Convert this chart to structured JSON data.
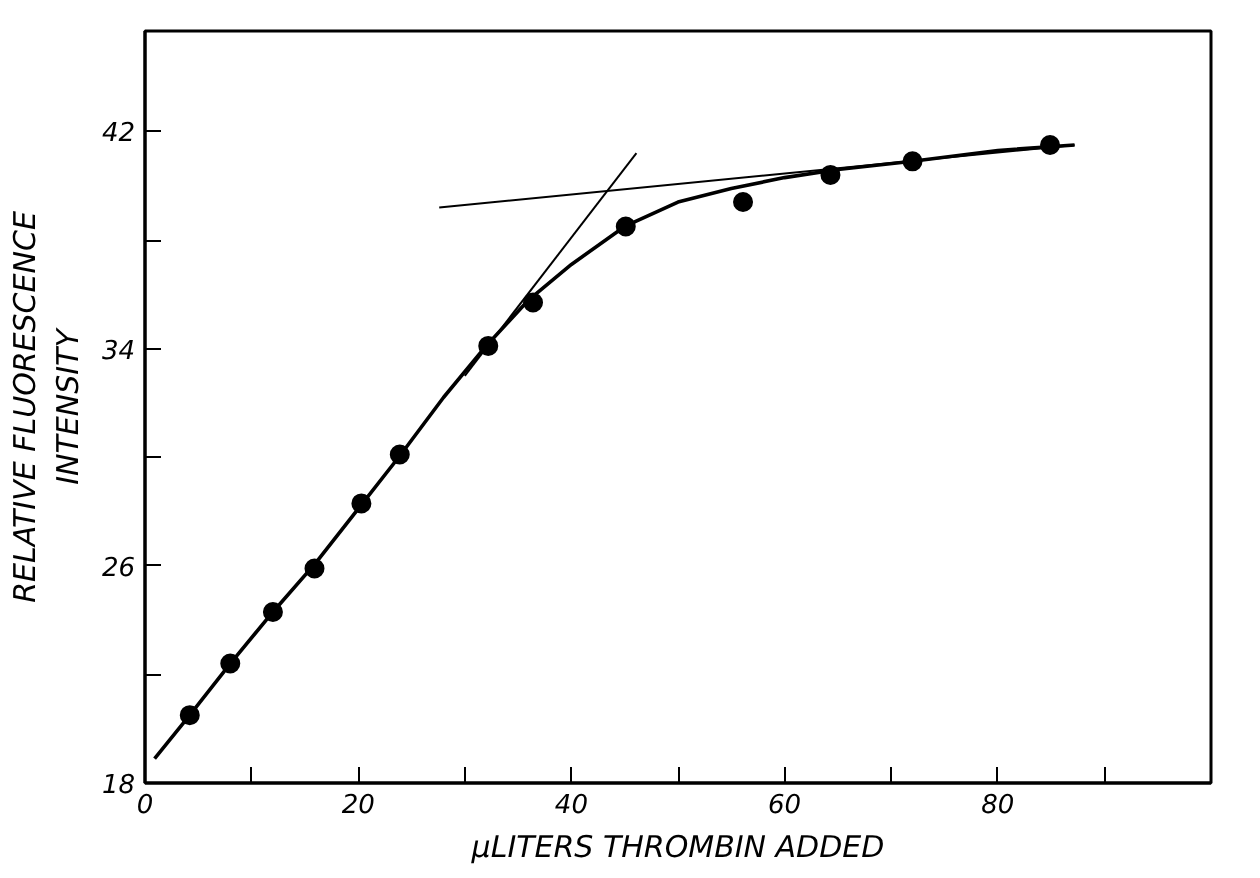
{
  "chart_data": {
    "type": "scatter",
    "xlabel": "μLITERS THROMBIN ADDED",
    "ylabel": "RELATIVE FLUORESCENCE\nINTENSITY",
    "xlim": [
      0,
      100
    ],
    "ylim": [
      18,
      45.7
    ],
    "xticks": [
      0,
      {
        "value": 10,
        "label": null
      },
      20,
      {
        "value": 30,
        "label": null
      },
      40,
      {
        "value": 50,
        "label": null
      },
      60,
      {
        "value": 70,
        "label": null
      },
      80,
      {
        "value": 90,
        "label": null
      }
    ],
    "yticks": [
      18,
      {
        "value": 22,
        "label": null
      },
      26,
      {
        "value": 30,
        "label": null
      },
      34,
      {
        "value": 38,
        "label": null
      },
      42
    ],
    "grid": false,
    "series": [
      {
        "marker": "circle",
        "color": "#000000",
        "x": [
          4.2,
          8.0,
          12.0,
          15.9,
          20.3,
          23.9,
          32.2,
          36.4,
          45.1,
          56.1,
          64.3,
          72.0,
          84.9
        ],
        "values": [
          20.5,
          22.4,
          24.3,
          25.9,
          28.3,
          30.1,
          34.1,
          35.7,
          38.5,
          39.4,
          40.4,
          40.9,
          41.5
        ]
      },
      {
        "type": "line",
        "marker": "none",
        "color": "#000000",
        "x": [
          0.9,
          4.2,
          8,
          12,
          16,
          20,
          24,
          28,
          32,
          36,
          40,
          45,
          50,
          55,
          60,
          65,
          72,
          80,
          87.2
        ],
        "values": [
          18.9,
          20.5,
          22.4,
          24.3,
          26.1,
          28.1,
          30.1,
          32.2,
          34.1,
          35.8,
          37.1,
          38.5,
          39.4,
          39.9,
          40.3,
          40.6,
          40.9,
          41.3,
          41.5
        ]
      },
      {
        "type": "line",
        "marker": "none",
        "color": "#000000",
        "x": [
          30,
          46.1
        ],
        "values": [
          33.0,
          41.2
        ]
      },
      {
        "type": "line",
        "marker": "none",
        "color": "#000000",
        "x": [
          27.6,
          87.2
        ],
        "values": [
          39.2,
          41.5
        ]
      }
    ]
  }
}
